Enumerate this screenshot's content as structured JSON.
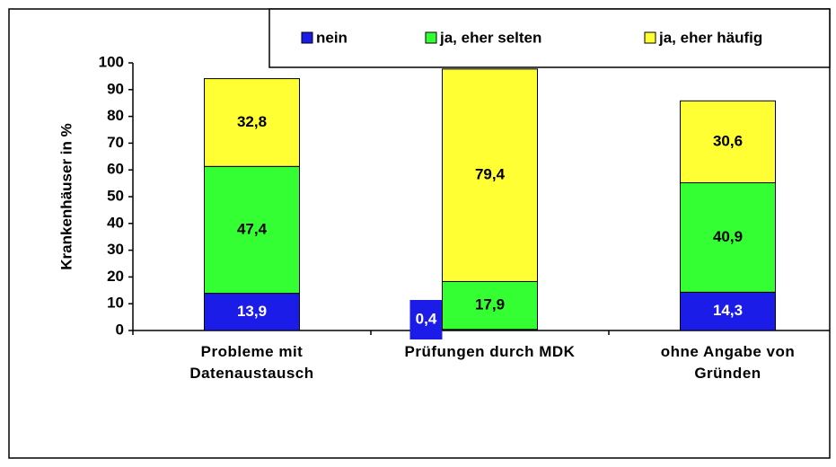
{
  "chart_data": {
    "type": "stacked_bar",
    "y_axis_label": "Krankenhäuser in %",
    "categories": [
      "Probleme mit\nDatenaustausch",
      "Prüfungen durch MDK",
      "ohne Angabe von\nGründen"
    ],
    "series": [
      {
        "name": "nein",
        "color": "#1c1ce8",
        "label_color": "#ffffff",
        "values": [
          13.9,
          0.4,
          14.3
        ],
        "value_labels": [
          "13,9",
          "0,4",
          "14,3"
        ]
      },
      {
        "name": "ja, eher selten",
        "color": "#33ff33",
        "label_color": "#000000",
        "values": [
          47.4,
          17.9,
          40.9
        ],
        "value_labels": [
          "47,4",
          "17,9",
          "40,9"
        ]
      },
      {
        "name": "ja, eher häufig",
        "color": "#ffff33",
        "label_color": "#000000",
        "values": [
          32.8,
          79.4,
          30.6
        ],
        "value_labels": [
          "32,8",
          "79,4",
          "30,6"
        ]
      }
    ],
    "ylim": [
      0,
      100
    ],
    "yticks": [
      0,
      10,
      20,
      30,
      40,
      50,
      60,
      70,
      80,
      90,
      100
    ],
    "legend": "top"
  }
}
